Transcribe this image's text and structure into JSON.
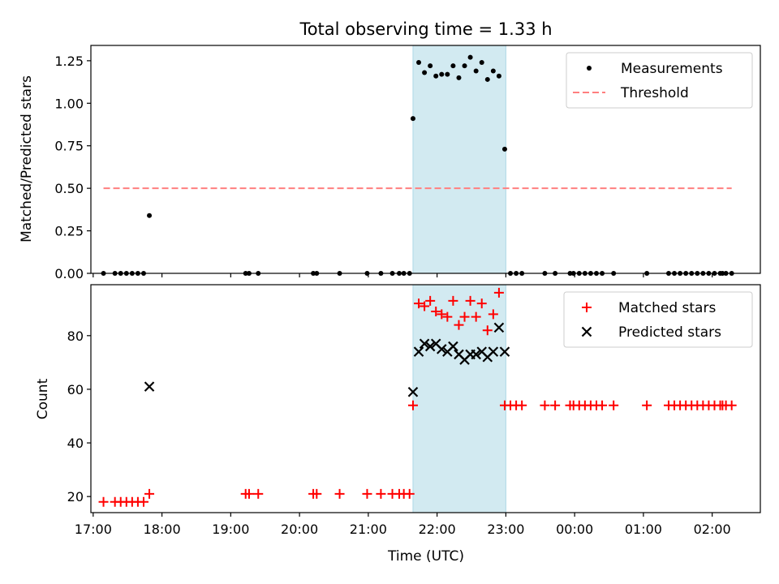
{
  "figure": {
    "title": "Total observing time = 1.33 h",
    "shaded_color": "#add8e6"
  },
  "chart_data": [
    {
      "type": "scatter",
      "panel": "top",
      "title": "Total observing time = 1.33 h",
      "xlabel": "",
      "ylabel": "Matched/Predicted stars",
      "xlim": [
        "16:58",
        "02:42"
      ],
      "ylim": [
        0,
        1.34
      ],
      "yticks": [
        0.0,
        0.25,
        0.5,
        0.75,
        1.0,
        1.25
      ],
      "ytick_labels": [
        "0.00",
        "0.25",
        "0.50",
        "0.75",
        "1.00",
        "1.25"
      ],
      "shaded_span": [
        "21:39",
        "23:00"
      ],
      "legend_position": "upper right",
      "series": [
        {
          "name": "Measurements",
          "marker": "dot",
          "color": "#000000",
          "points": [
            [
              "17:09",
              0
            ],
            [
              "17:19",
              0
            ],
            [
              "17:24",
              0
            ],
            [
              "17:29",
              0
            ],
            [
              "17:34",
              0
            ],
            [
              "17:39",
              0
            ],
            [
              "17:44",
              0
            ],
            [
              "17:49",
              0.34
            ],
            [
              "19:13",
              0
            ],
            [
              "19:16",
              0
            ],
            [
              "19:24",
              0
            ],
            [
              "20:12",
              0
            ],
            [
              "20:15",
              0
            ],
            [
              "20:35",
              0
            ],
            [
              "20:59",
              0
            ],
            [
              "21:11",
              0
            ],
            [
              "21:21",
              0
            ],
            [
              "21:27",
              0
            ],
            [
              "21:31",
              0
            ],
            [
              "21:36",
              0
            ],
            [
              "21:39",
              0.91
            ],
            [
              "21:44",
              1.24
            ],
            [
              "21:49",
              1.18
            ],
            [
              "21:54",
              1.22
            ],
            [
              "21:59",
              1.16
            ],
            [
              "22:04",
              1.17
            ],
            [
              "22:09",
              1.17
            ],
            [
              "22:14",
              1.22
            ],
            [
              "22:19",
              1.15
            ],
            [
              "22:24",
              1.22
            ],
            [
              "22:29",
              1.27
            ],
            [
              "22:34",
              1.19
            ],
            [
              "22:39",
              1.24
            ],
            [
              "22:44",
              1.14
            ],
            [
              "22:49",
              1.19
            ],
            [
              "22:54",
              1.16
            ],
            [
              "22:59",
              0.73
            ],
            [
              "23:04",
              0
            ],
            [
              "23:09",
              0
            ],
            [
              "23:14",
              0
            ],
            [
              "23:34",
              0
            ],
            [
              "23:43",
              0
            ],
            [
              "23:56",
              0
            ],
            [
              "23:59",
              0
            ],
            [
              "00:04",
              0
            ],
            [
              "00:09",
              0
            ],
            [
              "00:14",
              0
            ],
            [
              "00:19",
              0
            ],
            [
              "00:24",
              0
            ],
            [
              "00:34",
              0
            ],
            [
              "01:03",
              0
            ],
            [
              "01:22",
              0
            ],
            [
              "01:27",
              0
            ],
            [
              "01:32",
              0
            ],
            [
              "01:37",
              0
            ],
            [
              "01:42",
              0
            ],
            [
              "01:47",
              0
            ],
            [
              "01:52",
              0
            ],
            [
              "01:57",
              0
            ],
            [
              "02:02",
              0
            ],
            [
              "02:07",
              0
            ],
            [
              "02:09",
              0
            ],
            [
              "02:12",
              0
            ],
            [
              "02:17",
              0
            ]
          ]
        },
        {
          "name": "Threshold",
          "marker": "dashed-line",
          "color": "#ff7f7f",
          "points": [
            [
              "17:09",
              0.5
            ],
            [
              "02:17",
              0.5
            ]
          ]
        }
      ]
    },
    {
      "type": "scatter",
      "panel": "bottom",
      "xlabel": "Time (UTC)",
      "ylabel": "Count",
      "xlim": [
        "16:58",
        "02:42"
      ],
      "ylim": [
        14,
        99
      ],
      "yticks": [
        20,
        40,
        60,
        80
      ],
      "ytick_labels": [
        "20",
        "40",
        "60",
        "80"
      ],
      "xticks": [
        "17:00",
        "18:00",
        "19:00",
        "20:00",
        "21:00",
        "22:00",
        "23:00",
        "00:00",
        "01:00",
        "02:00"
      ],
      "xtick_labels": [
        "17:00",
        "18:00",
        "19:00",
        "20:00",
        "21:00",
        "22:00",
        "23:00",
        "00:00",
        "01:00",
        "02:00"
      ],
      "shaded_span": [
        "21:39",
        "23:00"
      ],
      "legend_position": "upper right",
      "series": [
        {
          "name": "Matched stars",
          "marker": "plus",
          "color": "#ff0000",
          "points": [
            [
              "17:09",
              18
            ],
            [
              "17:19",
              18
            ],
            [
              "17:24",
              18
            ],
            [
              "17:29",
              18
            ],
            [
              "17:34",
              18
            ],
            [
              "17:39",
              18
            ],
            [
              "17:44",
              18
            ],
            [
              "17:49",
              21
            ],
            [
              "19:13",
              21
            ],
            [
              "19:16",
              21
            ],
            [
              "19:24",
              21
            ],
            [
              "20:12",
              21
            ],
            [
              "20:15",
              21
            ],
            [
              "20:35",
              21
            ],
            [
              "20:59",
              21
            ],
            [
              "21:11",
              21
            ],
            [
              "21:21",
              21
            ],
            [
              "21:27",
              21
            ],
            [
              "21:31",
              21
            ],
            [
              "21:36",
              21
            ],
            [
              "21:39",
              54
            ],
            [
              "21:44",
              92
            ],
            [
              "21:49",
              91
            ],
            [
              "21:54",
              93
            ],
            [
              "21:59",
              89
            ],
            [
              "22:04",
              88
            ],
            [
              "22:09",
              87
            ],
            [
              "22:14",
              93
            ],
            [
              "22:19",
              84
            ],
            [
              "22:24",
              87
            ],
            [
              "22:29",
              93
            ],
            [
              "22:34",
              87
            ],
            [
              "22:39",
              92
            ],
            [
              "22:44",
              82
            ],
            [
              "22:49",
              88
            ],
            [
              "22:54",
              96
            ],
            [
              "22:59",
              54
            ],
            [
              "23:04",
              54
            ],
            [
              "23:09",
              54
            ],
            [
              "23:14",
              54
            ],
            [
              "23:34",
              54
            ],
            [
              "23:43",
              54
            ],
            [
              "23:56",
              54
            ],
            [
              "23:59",
              54
            ],
            [
              "00:04",
              54
            ],
            [
              "00:09",
              54
            ],
            [
              "00:14",
              54
            ],
            [
              "00:19",
              54
            ],
            [
              "00:24",
              54
            ],
            [
              "00:34",
              54
            ],
            [
              "01:03",
              54
            ],
            [
              "01:22",
              54
            ],
            [
              "01:27",
              54
            ],
            [
              "01:32",
              54
            ],
            [
              "01:37",
              54
            ],
            [
              "01:42",
              54
            ],
            [
              "01:47",
              54
            ],
            [
              "01:52",
              54
            ],
            [
              "01:57",
              54
            ],
            [
              "02:02",
              54
            ],
            [
              "02:07",
              54
            ],
            [
              "02:09",
              54
            ],
            [
              "02:12",
              54
            ],
            [
              "02:17",
              54
            ]
          ]
        },
        {
          "name": "Predicted stars",
          "marker": "x",
          "color": "#000000",
          "points": [
            [
              "17:49",
              61
            ],
            [
              "21:39",
              59
            ],
            [
              "21:44",
              74
            ],
            [
              "21:49",
              77
            ],
            [
              "21:54",
              76
            ],
            [
              "21:59",
              77
            ],
            [
              "22:04",
              75
            ],
            [
              "22:09",
              74
            ],
            [
              "22:14",
              76
            ],
            [
              "22:19",
              73
            ],
            [
              "22:24",
              71
            ],
            [
              "22:29",
              73
            ],
            [
              "22:34",
              73
            ],
            [
              "22:39",
              74
            ],
            [
              "22:44",
              72
            ],
            [
              "22:49",
              74
            ],
            [
              "22:54",
              83
            ],
            [
              "22:59",
              74
            ]
          ]
        }
      ]
    }
  ]
}
